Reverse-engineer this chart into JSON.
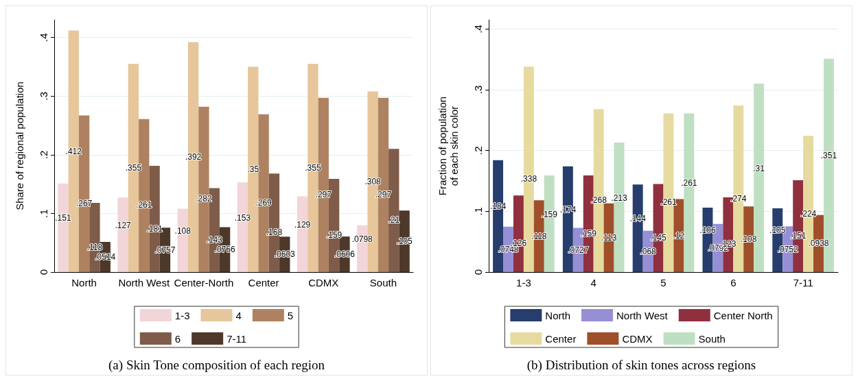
{
  "chart_data": [
    {
      "type": "bar",
      "title": "(a) Skin Tone composition of each region",
      "ylabel": "Share of regional population",
      "categories": [
        "North",
        "North West",
        "Center-North",
        "Center",
        "CDMX",
        "South"
      ],
      "ylim": [
        0,
        0.43
      ],
      "yticks": [
        0,
        {
          "value": 0.1,
          "label": ".1"
        },
        {
          "value": 0.2,
          "label": ".2"
        },
        {
          "value": 0.3,
          "label": ".3"
        },
        {
          "value": 0.4,
          "label": ".4"
        }
      ],
      "grid": "y",
      "legend": "bottom",
      "series": [
        {
          "name": "1-3",
          "color": "#f2d5d8",
          "values": [
            0.151,
            0.127,
            0.108,
            0.153,
            0.129,
            0.0798
          ],
          "value_labels": [
            ".151",
            ".127",
            ".108",
            ".153",
            ".129",
            ".0798"
          ]
        },
        {
          "name": "4",
          "color": "#e6c69a",
          "values": [
            0.412,
            0.355,
            0.392,
            0.35,
            0.355,
            0.308
          ],
          "value_labels": [
            ".412",
            ".355",
            ".392",
            ".35",
            ".355",
            ".308"
          ]
        },
        {
          "name": "5",
          "color": "#ae8260",
          "values": [
            0.267,
            0.261,
            0.282,
            0.269,
            0.297,
            0.297
          ],
          "value_labels": [
            ".267",
            ".261",
            ".282",
            ".269",
            ".297",
            ".297"
          ]
        },
        {
          "name": "6",
          "color": "#7f5c4a",
          "values": [
            0.118,
            0.181,
            0.143,
            0.168,
            0.159,
            0.21
          ],
          "value_labels": [
            ".118",
            ".181",
            ".143",
            ".168",
            ".159",
            ".21"
          ]
        },
        {
          "name": "7-11",
          "color": "#4d3829",
          "values": [
            0.0514,
            0.0757,
            0.0766,
            0.0603,
            0.0606,
            0.105
          ],
          "value_labels": [
            ".0514",
            ".0757",
            ".0766",
            ".0603",
            ".0606",
            ".105"
          ]
        }
      ]
    },
    {
      "type": "bar",
      "title": "(b) Distribution of skin tones across regions",
      "ylabel": "Fraction of population\nof each skin color",
      "categories": [
        "1-3",
        "4",
        "5",
        "6",
        "7-11"
      ],
      "ylim": [
        0,
        0.415
      ],
      "yticks": [
        0,
        {
          "value": 0.1,
          "label": ".1"
        },
        {
          "value": 0.2,
          "label": ".2"
        },
        {
          "value": 0.3,
          "label": ".3"
        },
        {
          "value": 0.4,
          "label": ".4"
        }
      ],
      "grid": "y",
      "legend": "bottom",
      "series": [
        {
          "name": "North",
          "color": "#263d6d",
          "values": [
            0.184,
            0.174,
            0.144,
            0.106,
            0.105
          ],
          "value_labels": [
            ".184",
            ".174",
            ".144",
            ".106",
            ".105"
          ]
        },
        {
          "name": "North West",
          "color": "#978fd6",
          "values": [
            0.0748,
            0.0727,
            0.068,
            0.0792,
            0.0752
          ],
          "value_labels": [
            ".0748",
            ".0727",
            ".068",
            ".0792",
            ".0752"
          ]
        },
        {
          "name": "Center North",
          "color": "#90303e",
          "values": [
            0.126,
            0.159,
            0.145,
            0.123,
            0.151
          ],
          "value_labels": [
            ".126",
            ".159",
            ".145",
            ".123",
            ".151"
          ]
        },
        {
          "name": "Center",
          "color": "#e6da9f",
          "values": [
            0.338,
            0.268,
            0.261,
            0.274,
            0.224
          ],
          "value_labels": [
            ".338",
            ".268",
            ".261",
            ".274",
            ".224"
          ]
        },
        {
          "name": "CDMX",
          "color": "#9f4f2a",
          "values": [
            0.118,
            0.113,
            0.12,
            0.108,
            0.0938
          ],
          "value_labels": [
            ".118",
            ".113",
            ".12",
            ".108",
            ".0938"
          ]
        },
        {
          "name": "South",
          "color": "#bfdfc2",
          "values": [
            0.159,
            0.213,
            0.261,
            0.31,
            0.351
          ],
          "value_labels": [
            ".159",
            ".213",
            ".261",
            ".31",
            ".351"
          ]
        }
      ]
    }
  ]
}
